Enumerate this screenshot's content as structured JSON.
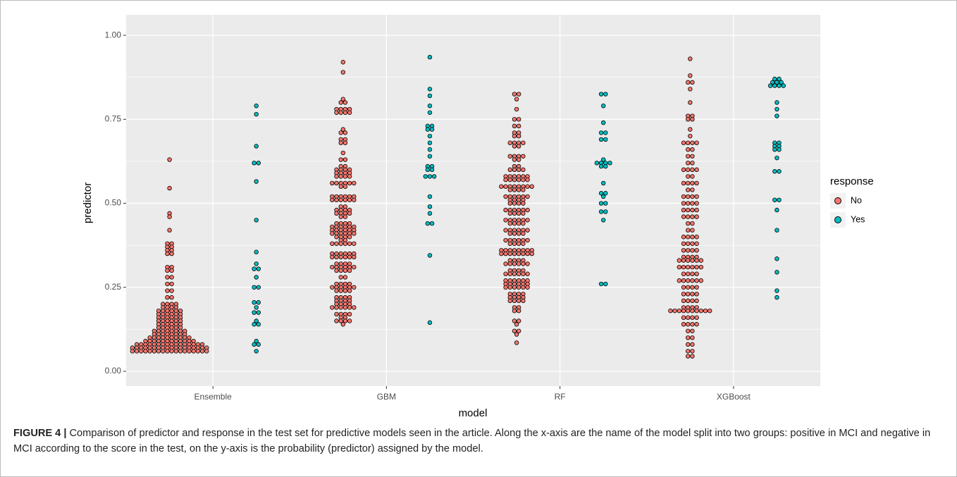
{
  "chart_data": {
    "type": "dotplot",
    "xlabel": "model",
    "ylabel": "predictor",
    "categories": [
      "Ensemble",
      "GBM",
      "RF",
      "XGBoost"
    ],
    "ylim": [
      -0.044,
      1.061
    ],
    "yticks": [
      {
        "value": 0,
        "label": "0.00"
      },
      {
        "value": 0.25,
        "label": "0.25"
      },
      {
        "value": 0.5,
        "label": "0.50"
      },
      {
        "value": 0.75,
        "label": "0.75"
      },
      {
        "value": 1,
        "label": "1.00"
      }
    ],
    "grid": true,
    "legend_title": "response",
    "legend_position": "right",
    "series": [
      {
        "name": "No",
        "color": "#F8766D",
        "values": [
          [
            0.63,
            0.545,
            0.47,
            0.46,
            0.42,
            0.38,
            0.38,
            0.37,
            0.37,
            0.36,
            0.36,
            0.35,
            0.35,
            0.31,
            0.31,
            0.3,
            0.3,
            0.28,
            0.28,
            0.26,
            0.26,
            0.24,
            0.24,
            0.22,
            0.22,
            0.2,
            0.2,
            0.2,
            0.2,
            0.19,
            0.19,
            0.19,
            0.19,
            0.18,
            0.18,
            0.18,
            0.18,
            0.18,
            0.18,
            0.17,
            0.17,
            0.17,
            0.17,
            0.17,
            0.17,
            0.16,
            0.16,
            0.16,
            0.16,
            0.16,
            0.16,
            0.15,
            0.15,
            0.15,
            0.15,
            0.15,
            0.15,
            0.14,
            0.14,
            0.14,
            0.14,
            0.14,
            0.14,
            0.13,
            0.13,
            0.13,
            0.13,
            0.13,
            0.13,
            0.12,
            0.12,
            0.12,
            0.12,
            0.12,
            0.12,
            0.12,
            0.12,
            0.11,
            0.11,
            0.11,
            0.11,
            0.11,
            0.11,
            0.11,
            0.11,
            0.1,
            0.1,
            0.1,
            0.1,
            0.1,
            0.1,
            0.1,
            0.1,
            0.1,
            0.1,
            0.09,
            0.09,
            0.09,
            0.09,
            0.09,
            0.09,
            0.09,
            0.09,
            0.09,
            0.09,
            0.09,
            0.09,
            0.08,
            0.08,
            0.08,
            0.08,
            0.08,
            0.08,
            0.08,
            0.08,
            0.08,
            0.08,
            0.08,
            0.08,
            0.08,
            0.08,
            0.08,
            0.08,
            0.07,
            0.07,
            0.07,
            0.07,
            0.07,
            0.07,
            0.07,
            0.07,
            0.07,
            0.07,
            0.07,
            0.07,
            0.07,
            0.07,
            0.07,
            0.07,
            0.07,
            0.07,
            0.06,
            0.06,
            0.06,
            0.06,
            0.06,
            0.06,
            0.06,
            0.06,
            0.06,
            0.06,
            0.06,
            0.06,
            0.06,
            0.06,
            0.06,
            0.06,
            0.06,
            0.06
          ],
          [
            0.92,
            0.89,
            0.81,
            0.8,
            0.8,
            0.78,
            0.78,
            0.78,
            0.78,
            0.77,
            0.77,
            0.77,
            0.77,
            0.72,
            0.71,
            0.71,
            0.69,
            0.69,
            0.68,
            0.68,
            0.65,
            0.63,
            0.63,
            0.61,
            0.61,
            0.6,
            0.6,
            0.6,
            0.6,
            0.59,
            0.59,
            0.59,
            0.59,
            0.58,
            0.58,
            0.58,
            0.58,
            0.56,
            0.56,
            0.56,
            0.56,
            0.56,
            0.56,
            0.55,
            0.55,
            0.52,
            0.52,
            0.52,
            0.52,
            0.52,
            0.52,
            0.51,
            0.51,
            0.51,
            0.51,
            0.51,
            0.51,
            0.49,
            0.49,
            0.48,
            0.48,
            0.48,
            0.48,
            0.47,
            0.47,
            0.47,
            0.47,
            0.46,
            0.46,
            0.44,
            0.44,
            0.44,
            0.44,
            0.43,
            0.43,
            0.43,
            0.43,
            0.43,
            0.43,
            0.42,
            0.42,
            0.42,
            0.42,
            0.42,
            0.42,
            0.41,
            0.41,
            0.41,
            0.41,
            0.41,
            0.41,
            0.4,
            0.4,
            0.4,
            0.4,
            0.39,
            0.39,
            0.38,
            0.38,
            0.38,
            0.38,
            0.38,
            0.38,
            0.35,
            0.35,
            0.35,
            0.35,
            0.35,
            0.35,
            0.34,
            0.34,
            0.34,
            0.34,
            0.34,
            0.34,
            0.32,
            0.32,
            0.32,
            0.32,
            0.31,
            0.31,
            0.31,
            0.31,
            0.31,
            0.31,
            0.3,
            0.3,
            0.3,
            0.3,
            0.28,
            0.28,
            0.26,
            0.26,
            0.26,
            0.26,
            0.25,
            0.25,
            0.25,
            0.25,
            0.25,
            0.25,
            0.24,
            0.24,
            0.24,
            0.24,
            0.22,
            0.22,
            0.22,
            0.22,
            0.21,
            0.21,
            0.21,
            0.21,
            0.2,
            0.2,
            0.2,
            0.2,
            0.19,
            0.19,
            0.19,
            0.19,
            0.19,
            0.19,
            0.17,
            0.17,
            0.17,
            0.17,
            0.16,
            0.16,
            0.15,
            0.15,
            0.15,
            0.15,
            0.14
          ],
          [
            0.825,
            0.825,
            0.81,
            0.78,
            0.75,
            0.75,
            0.73,
            0.73,
            0.71,
            0.71,
            0.7,
            0.7,
            0.68,
            0.68,
            0.68,
            0.68,
            0.67,
            0.67,
            0.64,
            0.64,
            0.64,
            0.64,
            0.63,
            0.63,
            0.61,
            0.61,
            0.6,
            0.6,
            0.6,
            0.6,
            0.58,
            0.58,
            0.58,
            0.58,
            0.58,
            0.58,
            0.57,
            0.57,
            0.57,
            0.57,
            0.57,
            0.57,
            0.55,
            0.55,
            0.55,
            0.55,
            0.55,
            0.55,
            0.55,
            0.55,
            0.54,
            0.54,
            0.54,
            0.54,
            0.52,
            0.52,
            0.52,
            0.52,
            0.52,
            0.52,
            0.51,
            0.51,
            0.51,
            0.51,
            0.5,
            0.5,
            0.5,
            0.5,
            0.48,
            0.48,
            0.48,
            0.48,
            0.48,
            0.48,
            0.47,
            0.47,
            0.47,
            0.47,
            0.45,
            0.45,
            0.45,
            0.45,
            0.45,
            0.45,
            0.44,
            0.44,
            0.44,
            0.44,
            0.42,
            0.42,
            0.42,
            0.42,
            0.42,
            0.42,
            0.41,
            0.41,
            0.41,
            0.41,
            0.39,
            0.39,
            0.39,
            0.39,
            0.39,
            0.39,
            0.38,
            0.38,
            0.38,
            0.38,
            0.36,
            0.36,
            0.36,
            0.36,
            0.36,
            0.36,
            0.36,
            0.36,
            0.35,
            0.35,
            0.35,
            0.35,
            0.35,
            0.35,
            0.35,
            0.35,
            0.33,
            0.33,
            0.33,
            0.33,
            0.32,
            0.32,
            0.32,
            0.32,
            0.32,
            0.32,
            0.3,
            0.3,
            0.3,
            0.3,
            0.29,
            0.29,
            0.29,
            0.29,
            0.29,
            0.29,
            0.27,
            0.27,
            0.27,
            0.27,
            0.27,
            0.27,
            0.26,
            0.26,
            0.26,
            0.26,
            0.26,
            0.26,
            0.25,
            0.25,
            0.25,
            0.25,
            0.25,
            0.25,
            0.23,
            0.23,
            0.23,
            0.23,
            0.22,
            0.22,
            0.22,
            0.22,
            0.21,
            0.21,
            0.21,
            0.21,
            0.19,
            0.19,
            0.18,
            0.18,
            0.15,
            0.15,
            0.14,
            0.12,
            0.12,
            0.11,
            0.085
          ],
          [
            0.93,
            0.88,
            0.86,
            0.86,
            0.84,
            0.8,
            0.76,
            0.76,
            0.75,
            0.75,
            0.72,
            0.7,
            0.68,
            0.68,
            0.68,
            0.68,
            0.66,
            0.66,
            0.64,
            0.64,
            0.62,
            0.62,
            0.6,
            0.6,
            0.6,
            0.6,
            0.58,
            0.58,
            0.56,
            0.56,
            0.56,
            0.56,
            0.54,
            0.54,
            0.52,
            0.52,
            0.52,
            0.52,
            0.5,
            0.5,
            0.5,
            0.5,
            0.48,
            0.48,
            0.48,
            0.48,
            0.46,
            0.46,
            0.46,
            0.46,
            0.44,
            0.44,
            0.42,
            0.42,
            0.4,
            0.4,
            0.4,
            0.4,
            0.38,
            0.38,
            0.38,
            0.38,
            0.36,
            0.36,
            0.36,
            0.36,
            0.34,
            0.34,
            0.34,
            0.34,
            0.33,
            0.33,
            0.33,
            0.33,
            0.33,
            0.33,
            0.31,
            0.31,
            0.31,
            0.31,
            0.31,
            0.31,
            0.29,
            0.29,
            0.29,
            0.29,
            0.27,
            0.27,
            0.27,
            0.27,
            0.27,
            0.27,
            0.25,
            0.25,
            0.25,
            0.25,
            0.23,
            0.23,
            0.23,
            0.23,
            0.21,
            0.21,
            0.21,
            0.21,
            0.19,
            0.19,
            0.19,
            0.19,
            0.18,
            0.18,
            0.18,
            0.18,
            0.18,
            0.18,
            0.18,
            0.18,
            0.18,
            0.18,
            0.16,
            0.16,
            0.16,
            0.16,
            0.14,
            0.14,
            0.14,
            0.14,
            0.12,
            0.12,
            0.1,
            0.1,
            0.08,
            0.08,
            0.06,
            0.06,
            0.045,
            0.045
          ]
        ]
      },
      {
        "name": "Yes",
        "color": "#00BFC4",
        "values": [
          [
            0.79,
            0.765,
            0.67,
            0.62,
            0.62,
            0.565,
            0.45,
            0.355,
            0.32,
            0.305,
            0.305,
            0.28,
            0.25,
            0.25,
            0.205,
            0.205,
            0.19,
            0.175,
            0.175,
            0.15,
            0.14,
            0.14,
            0.09,
            0.08,
            0.08,
            0.06
          ],
          [
            0.935,
            0.84,
            0.82,
            0.79,
            0.77,
            0.73,
            0.73,
            0.72,
            0.72,
            0.7,
            0.68,
            0.66,
            0.64,
            0.61,
            0.61,
            0.6,
            0.6,
            0.58,
            0.58,
            0.58,
            0.52,
            0.49,
            0.47,
            0.44,
            0.44,
            0.345,
            0.145
          ],
          [
            0.825,
            0.825,
            0.79,
            0.74,
            0.71,
            0.71,
            0.69,
            0.69,
            0.63,
            0.62,
            0.62,
            0.62,
            0.62,
            0.61,
            0.61,
            0.56,
            0.53,
            0.53,
            0.52,
            0.5,
            0.5,
            0.475,
            0.475,
            0.45,
            0.26,
            0.26
          ],
          [
            0.87,
            0.87,
            0.86,
            0.86,
            0.86,
            0.85,
            0.85,
            0.85,
            0.85,
            0.8,
            0.78,
            0.76,
            0.68,
            0.68,
            0.67,
            0.67,
            0.66,
            0.66,
            0.635,
            0.595,
            0.595,
            0.51,
            0.51,
            0.48,
            0.42,
            0.335,
            0.295,
            0.24,
            0.22
          ]
        ]
      }
    ]
  },
  "caption": {
    "label": "FIGURE 4 |",
    "text": "Comparison of predictor and response in the test set for predictive models seen in the article. Along the x-axis are the name of the model split into two groups: positive in MCI and negative in MCI according to the score in the test, on the y-axis is the probability (predictor) assigned by the model."
  }
}
